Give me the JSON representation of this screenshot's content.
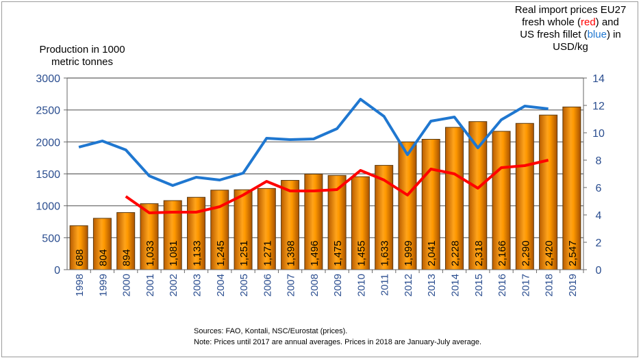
{
  "chart_data": {
    "type": "bar+line",
    "categories": [
      "1998",
      "1999",
      "2000",
      "2001",
      "2002",
      "2003",
      "2004",
      "2005",
      "2006",
      "2007",
      "2008",
      "2009",
      "2010",
      "2011",
      "2012",
      "2013",
      "2014",
      "2015",
      "2016",
      "2017",
      "2018",
      "2019"
    ],
    "bar_series": {
      "values": [
        688,
        804,
        894,
        1033,
        1081,
        1133,
        1245,
        1251,
        1271,
        1398,
        1496,
        1475,
        1455,
        1633,
        1999,
        2041,
        2228,
        2318,
        2166,
        2290,
        2420,
        2547
      ],
      "labels": [
        "688",
        "804",
        "894",
        "1,033",
        "1,081",
        "1,133",
        "1,245",
        "1,251",
        "1,271",
        "1,398",
        "1,496",
        "1,475",
        "1,455",
        "1,633",
        "1,999",
        "2,041",
        "2,228",
        "2,318",
        "2,166",
        "2,290",
        "2,420",
        "2,547"
      ],
      "color": "#ff9900",
      "axis": "left"
    },
    "line_series": [
      {
        "color": "#ff0000",
        "axis": "right",
        "values": [
          null,
          null,
          5.35,
          4.15,
          4.2,
          4.2,
          4.6,
          5.45,
          6.45,
          5.75,
          5.75,
          5.85,
          7.25,
          6.55,
          5.45,
          7.35,
          7.0,
          5.95,
          7.45,
          7.6,
          8.0,
          null
        ]
      },
      {
        "color": "#1f77d0",
        "axis": "right",
        "values": [
          8.95,
          9.4,
          8.75,
          6.85,
          6.15,
          6.75,
          6.55,
          7.05,
          9.6,
          9.5,
          9.55,
          10.3,
          12.45,
          11.2,
          8.4,
          10.85,
          11.15,
          8.9,
          10.95,
          11.95,
          11.75,
          null
        ]
      }
    ],
    "left_axis": {
      "title_lines": [
        "Production in 1000",
        "metric tonnes"
      ],
      "ylim": [
        0,
        3000
      ],
      "ticks": [
        "0",
        "500",
        "1000",
        "1500",
        "2000",
        "2500",
        "3000"
      ]
    },
    "right_axis": {
      "title_parts": [
        "Real import prices EU27",
        "fresh whole (",
        "red",
        ") and",
        "US fresh fillet (",
        "blue",
        ") in",
        "USD/kg"
      ],
      "ylim": [
        0,
        14
      ],
      "ticks": [
        "0",
        "2",
        "4",
        "6",
        "8",
        "10",
        "12",
        "14"
      ]
    },
    "grid": true,
    "axis_label_color": "#2a4d8f"
  },
  "notes": {
    "sources": "Sources: FAO, Kontali, NSC/Eurostat (prices).",
    "note": "Note: Prices  until 2017 are annual averages. Prices in 2018 are January-July average."
  }
}
